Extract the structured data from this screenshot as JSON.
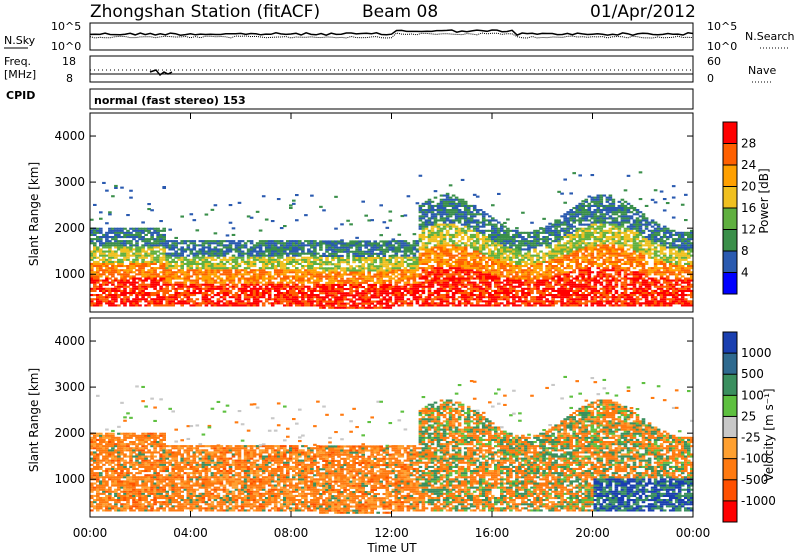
{
  "header": {
    "station": "Zhongshan Station (fitACF)",
    "beam": "Beam 08",
    "date": "01/Apr/2012"
  },
  "top_panels": {
    "nsky_label": "N.Sky",
    "nsky_ticks": [
      "10^5",
      "10^0"
    ],
    "nsearch_label": "N.Search",
    "nsearch_ticks": [
      "10^5",
      "10^0"
    ],
    "freq_label_1": "Freq.",
    "freq_label_2": "[MHz]",
    "freq_ticks": [
      "18",
      "8"
    ],
    "nave_label": "Nave",
    "nave_ticks": [
      "60",
      "0"
    ],
    "cpid_label": "CPID",
    "cpid_text": "normal (fast stereo) 153"
  },
  "chart_data": [
    {
      "type": "heatmap",
      "name": "power",
      "ylabel": "Slant Range [km]",
      "yticks": [
        "4000",
        "3000",
        "2000",
        "1000"
      ],
      "ytick_values": [
        4000,
        3000,
        2000,
        1000
      ],
      "ylim": [
        180,
        4500
      ],
      "xlim": [
        0,
        24
      ],
      "colorbar_label": "Power [dB]",
      "colorbar_ticks": [
        "28",
        "24",
        "20",
        "16",
        "12",
        "8",
        "4"
      ],
      "colorbar_colors": [
        "#ff0000",
        "#ff6000",
        "#ffa000",
        "#f0c020",
        "#60b040",
        "#3a8f4a",
        "#2a5ab0",
        "#0000ff"
      ]
    },
    {
      "type": "heatmap",
      "name": "velocity",
      "ylabel": "Slant Range [km]",
      "yticks": [
        "4000",
        "3000",
        "2000",
        "1000"
      ],
      "ytick_values": [
        4000,
        3000,
        2000,
        1000
      ],
      "ylim": [
        180,
        4500
      ],
      "xlim": [
        0,
        24
      ],
      "xlabel": "Time UT",
      "xticks": [
        "00:00",
        "04:00",
        "08:00",
        "12:00",
        "16:00",
        "20:00",
        "00:00"
      ],
      "xtick_values": [
        0,
        4,
        8,
        12,
        16,
        20,
        24
      ],
      "colorbar_label": "Velocity [m s⁻¹]",
      "colorbar_ticks": [
        "1000",
        "500",
        "100",
        "25",
        "-25",
        "-100",
        "-500",
        "-1000"
      ],
      "colorbar_colors": [
        "#1a3fb0",
        "#2f6a8f",
        "#3a8f5f",
        "#5ec040",
        "#c8c8c8",
        "#ffa030",
        "#ff7a10",
        "#ff5000",
        "#ff0000"
      ]
    }
  ]
}
